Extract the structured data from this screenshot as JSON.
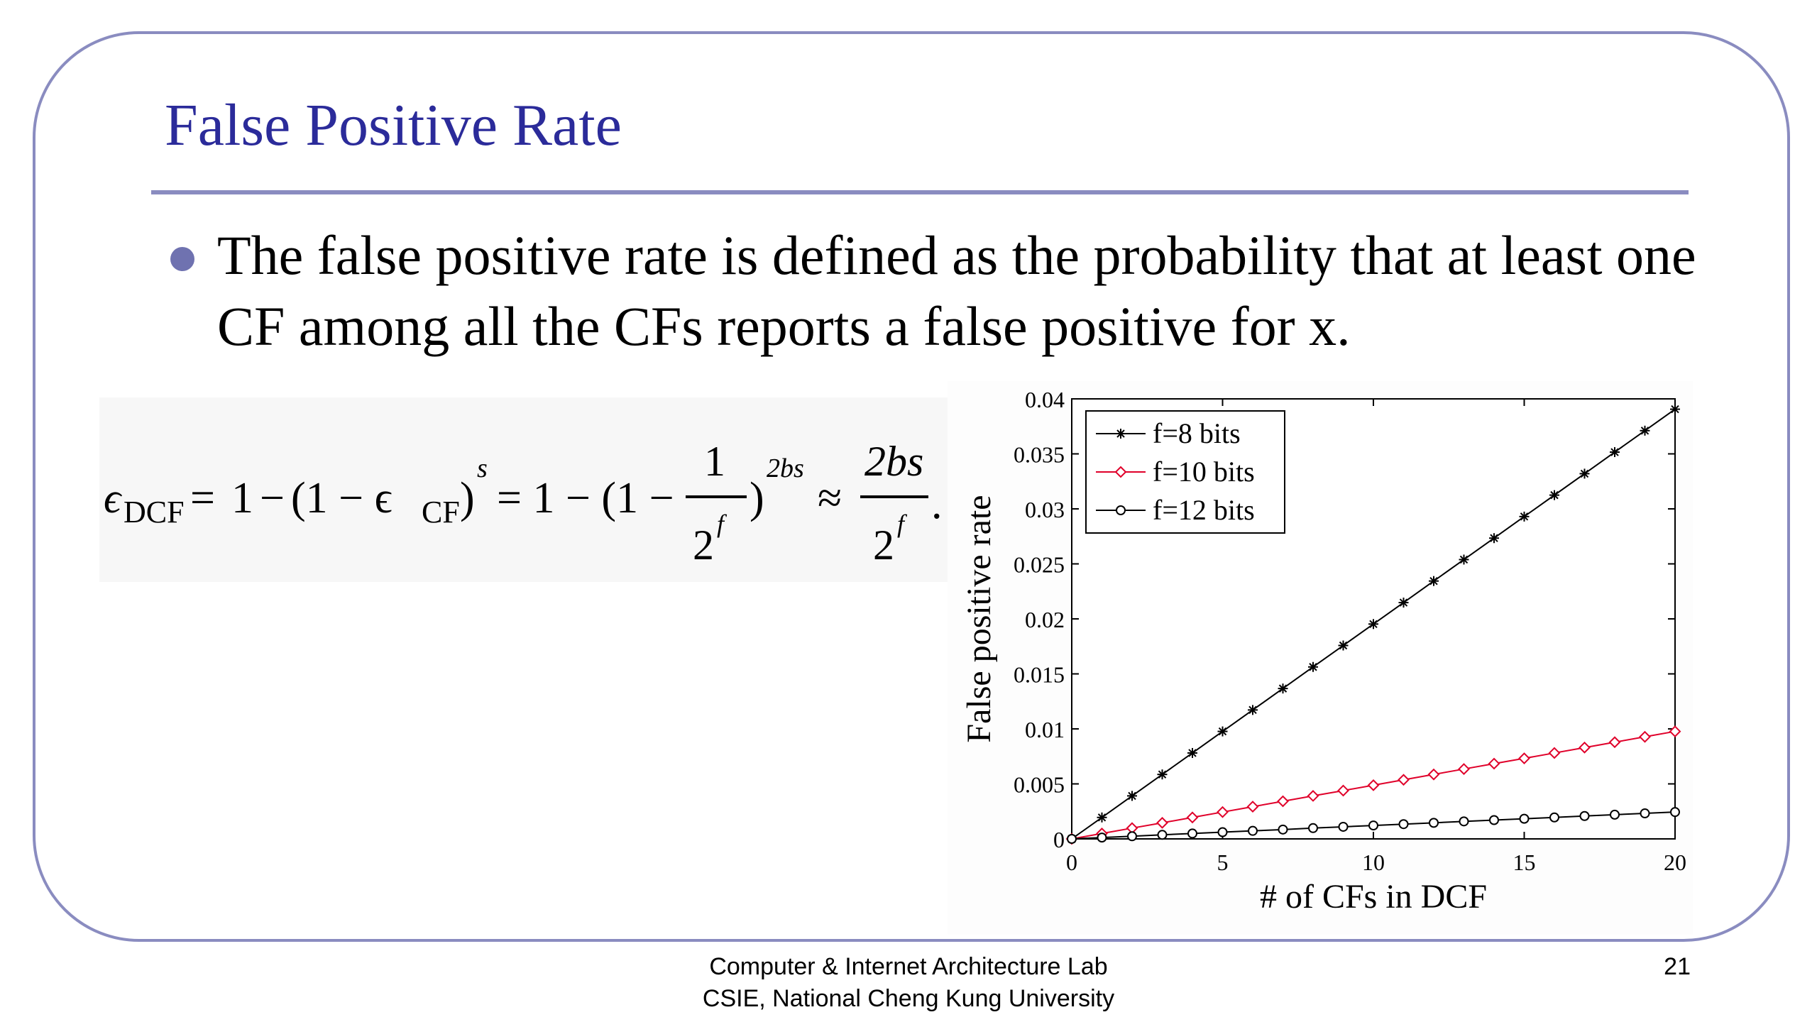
{
  "slide": {
    "title": "False Positive Rate",
    "bullet": "The false positive rate is defined as the probability that at least one CF among all the CFs reports a false positive for x.",
    "page_number": "21"
  },
  "formula": {
    "lhs_symbol": "ϵ",
    "lhs_sub": "DCF",
    "eq": "=",
    "one": "1",
    "minus": "−",
    "inner_open": "(1 − ϵ",
    "inner_sub": "CF",
    "inner_close": ")",
    "power_s": "s",
    "eq2": "= 1 − (1 −",
    "frac_num": "1",
    "frac_den_base": "2",
    "frac_den_exp": "f",
    "close_paren": ")",
    "power_2bs": "2bs",
    "approx": "≈",
    "rhs_num": "2bs",
    "rhs_den_base": "2",
    "rhs_den_exp": "f",
    "period": "."
  },
  "footer": {
    "line1": "Computer & Internet Architecture Lab",
    "line2": "CSIE, National Cheng Kung University"
  },
  "chart_data": {
    "type": "line",
    "xlabel": "# of CFs in DCF",
    "ylabel": "False positive rate",
    "xlim": [
      0,
      20
    ],
    "ylim": [
      0,
      0.04
    ],
    "xticks": [
      0,
      5,
      10,
      15,
      20
    ],
    "yticks": [
      0,
      0.005,
      0.01,
      0.015,
      0.02,
      0.025,
      0.03,
      0.035,
      0.04
    ],
    "ytick_labels": [
      "0",
      "0.005",
      "0.01",
      "0.015",
      "0.02",
      "0.025",
      "0.03",
      "0.035",
      "0.04"
    ],
    "legend_position": "top-left",
    "x": [
      0,
      1,
      2,
      3,
      4,
      5,
      6,
      7,
      8,
      9,
      10,
      11,
      12,
      13,
      14,
      15,
      16,
      17,
      18,
      19,
      20
    ],
    "series": [
      {
        "name": "f=8 bits",
        "marker": "asterisk",
        "color": "#000000",
        "values": [
          0,
          0.00195,
          0.00391,
          0.00586,
          0.00781,
          0.00977,
          0.01172,
          0.01367,
          0.01563,
          0.01758,
          0.01953,
          0.02148,
          0.02344,
          0.02539,
          0.02734,
          0.0293,
          0.03125,
          0.0332,
          0.03516,
          0.03711,
          0.03906
        ]
      },
      {
        "name": "f=10 bits",
        "marker": "diamond",
        "color": "#e0002a",
        "values": [
          0,
          0.00049,
          0.00098,
          0.00146,
          0.00195,
          0.00244,
          0.00293,
          0.00342,
          0.00391,
          0.00439,
          0.00488,
          0.00537,
          0.00586,
          0.00635,
          0.00684,
          0.00732,
          0.00781,
          0.0083,
          0.00879,
          0.00928,
          0.00977
        ]
      },
      {
        "name": "f=12 bits",
        "marker": "circle",
        "color": "#000000",
        "values": [
          0,
          0.00012,
          0.00024,
          0.00037,
          0.00049,
          0.00061,
          0.00073,
          0.00085,
          0.00098,
          0.0011,
          0.00122,
          0.00134,
          0.00146,
          0.00159,
          0.00171,
          0.00183,
          0.00195,
          0.00208,
          0.0022,
          0.00232,
          0.00244
        ]
      }
    ]
  }
}
